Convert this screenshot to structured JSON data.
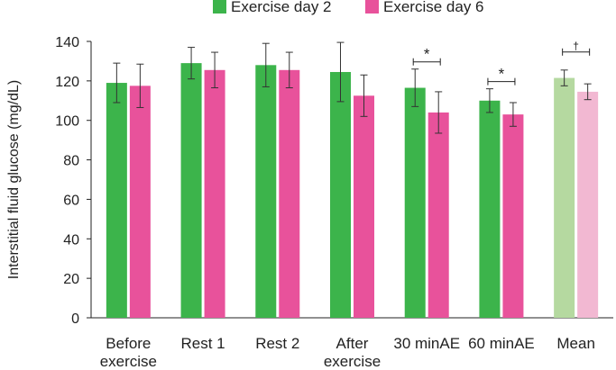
{
  "chart_data": {
    "type": "bar",
    "ylabel": "Interstitial fluid glucose (mg/dL)",
    "xlabel": "",
    "ylim": [
      0,
      140
    ],
    "yticks": [
      0,
      20,
      40,
      60,
      80,
      100,
      120,
      140
    ],
    "categories": [
      [
        "Before",
        "exercise"
      ],
      [
        "Rest 1"
      ],
      [
        "Rest 2"
      ],
      [
        "After",
        "exercise"
      ],
      [
        "30 minAE"
      ],
      [
        "60 minAE"
      ],
      [
        "Mean"
      ]
    ],
    "series": [
      {
        "name": "Exercise day 2",
        "color": "#3cb44b",
        "mean_color": "#b5d9a0",
        "values": [
          119,
          129,
          128,
          124.5,
          116.5,
          110,
          121.5
        ],
        "error": [
          10,
          8,
          11,
          15,
          9.5,
          6,
          4
        ]
      },
      {
        "name": "Exercise day 6",
        "color": "#e8529b",
        "mean_color": "#f2b8d2",
        "values": [
          117.5,
          125.5,
          125.5,
          112.5,
          104,
          103,
          114.5
        ],
        "error": [
          11,
          9,
          9,
          10.5,
          10.5,
          6,
          4
        ]
      }
    ],
    "annotations": [
      {
        "category_index": 4,
        "symbol": "*"
      },
      {
        "category_index": 5,
        "symbol": "*"
      },
      {
        "category_index": 6,
        "symbol": "†"
      }
    ],
    "legend_position": "top-center"
  }
}
